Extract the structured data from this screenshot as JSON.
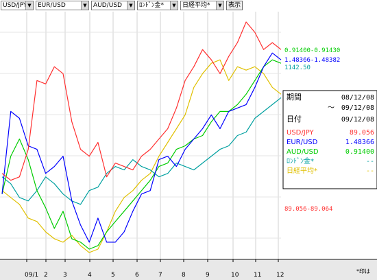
{
  "toolbar": {
    "selects": [
      "USD/JPY",
      "EUR/USD",
      "AUD/USD",
      "ﾛﾝﾄﾞﾝ金*",
      "日経平均*"
    ],
    "arrow_glyph": "▼",
    "show_button": "表示"
  },
  "info": {
    "period_label": "期間",
    "period_start": "08/12/08",
    "period_sep": "〜",
    "period_end": "09/12/08",
    "date_label": "日付",
    "date_value": "09/12/08",
    "rows": [
      {
        "name": "USD/JPY",
        "value": "89.056",
        "color": "#ff3030"
      },
      {
        "name": "EUR/USD",
        "value": "1.48366",
        "color": "#0000ff"
      },
      {
        "name": "AUD/USD",
        "value": "0.91400",
        "color": "#00cc00"
      },
      {
        "name": "ﾛﾝﾄﾞﾝ金*",
        "value": "--",
        "color": "#00a0a0"
      },
      {
        "name": "日経平均*",
        "value": "--",
        "color": "#e0c000"
      }
    ]
  },
  "footnote": "*印は",
  "chart_data": {
    "type": "line",
    "title": "",
    "xlabel": "",
    "ylabel": "",
    "x_ticks": [
      "09/1",
      "2",
      "3",
      "4",
      "5",
      "6",
      "7",
      "8",
      "9",
      "10",
      "11",
      "12"
    ],
    "grid": true,
    "legend": "none",
    "end_labels": [
      {
        "series": "AUD/USD",
        "text": "0.91400-0.91430",
        "color": "#00cc00"
      },
      {
        "series": "EUR/USD",
        "text": "1.48366-1.48382",
        "color": "#0000ff"
      },
      {
        "series": "ﾛﾝﾄﾞﾝ金*",
        "text": "1142.50",
        "color": "#00a0a0"
      },
      {
        "series": "USD/JPY",
        "text": "89.056-89.064",
        "color": "#ff3030"
      }
    ],
    "series": [
      {
        "name": "USD/JPY",
        "color": "#ff3030",
        "values": [
          165,
          155,
          160,
          200,
          300,
          295,
          320,
          310,
          240,
          200,
          190,
          210,
          160,
          180,
          175,
          170,
          190,
          200,
          215,
          230,
          260,
          300,
          320,
          345,
          330,
          310,
          335,
          355,
          385,
          370,
          345,
          355,
          345
        ]
      },
      {
        "name": "EUR/USD",
        "color": "#0000ff",
        "values": [
          135,
          255,
          245,
          205,
          200,
          165,
          175,
          190,
          125,
          90,
          65,
          100,
          65,
          65,
          80,
          110,
          135,
          140,
          185,
          190,
          175,
          200,
          215,
          230,
          250,
          230,
          255,
          260,
          265,
          290,
          320,
          340,
          330
        ]
      },
      {
        "name": "AUD/USD",
        "color": "#00cc00",
        "values": [
          135,
          190,
          215,
          185,
          140,
          115,
          85,
          110,
          70,
          65,
          55,
          60,
          80,
          95,
          110,
          125,
          140,
          155,
          175,
          180,
          200,
          205,
          215,
          220,
          240,
          255,
          255,
          265,
          280,
          300,
          320,
          330,
          325
        ]
      },
      {
        "name": "ﾛﾝﾄﾞﾝ金*",
        "color": "#00a0a0",
        "values": [
          160,
          150,
          130,
          125,
          140,
          160,
          150,
          135,
          125,
          120,
          140,
          145,
          165,
          175,
          170,
          185,
          175,
          170,
          160,
          165,
          180,
          175,
          170,
          180,
          190,
          200,
          205,
          220,
          225,
          245,
          255,
          265,
          275
        ]
      },
      {
        "name": "日経平均*",
        "color": "#e0c000",
        "values": [
          140,
          130,
          120,
          100,
          95,
          80,
          70,
          65,
          75,
          60,
          50,
          55,
          80,
          110,
          130,
          140,
          155,
          165,
          190,
          210,
          230,
          250,
          290,
          310,
          325,
          330,
          300,
          320,
          315,
          320,
          310,
          290,
          280
        ]
      }
    ]
  }
}
